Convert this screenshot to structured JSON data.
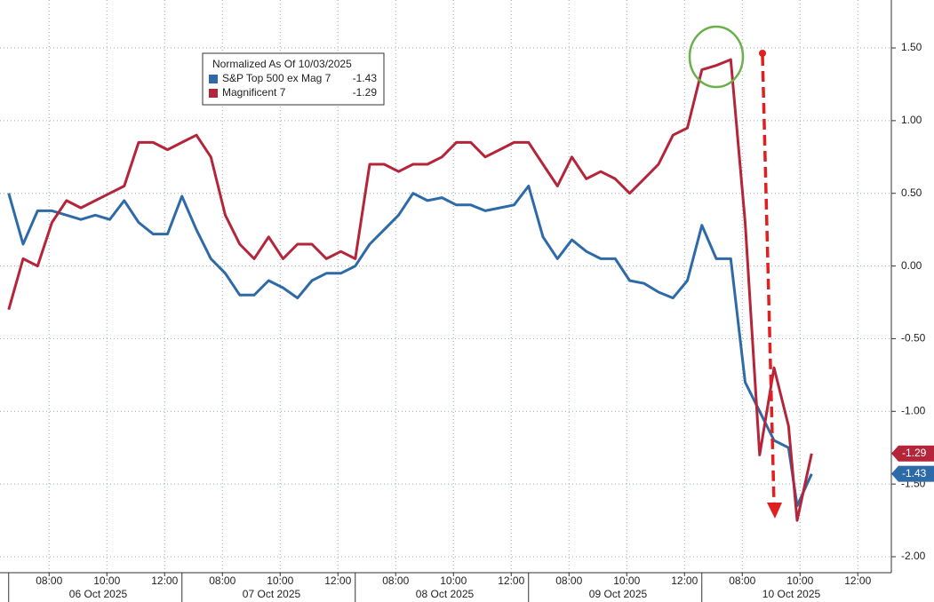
{
  "chart_data": {
    "type": "line",
    "legend_title": "Normalized As Of 10/03/2025",
    "x": [
      0,
      0.5,
      1,
      1.5,
      2,
      2.5,
      3,
      3.5,
      4,
      4.5,
      5,
      5.5,
      6,
      6.5,
      7,
      7.5,
      8,
      8.5,
      9,
      9.5,
      10,
      10.5,
      11,
      11.5,
      12,
      12.5,
      13,
      13.5,
      14,
      14.5,
      15,
      15.5,
      16,
      16.5,
      17,
      17.5,
      18,
      18.5,
      19,
      19.5,
      20,
      20.5,
      21,
      21.5,
      22,
      22.5,
      23,
      23.5,
      24,
      24.5,
      25,
      25.5,
      26,
      26.5,
      27,
      27.3,
      27.8
    ],
    "series": [
      {
        "name": "S&P Top 500 ex Mag 7",
        "last_label": "-1.43",
        "color": "#2f6aa8",
        "values": [
          0.5,
          0.15,
          0.38,
          0.38,
          0.35,
          0.32,
          0.35,
          0.32,
          0.45,
          0.3,
          0.22,
          0.22,
          0.48,
          0.25,
          0.05,
          -0.05,
          -0.2,
          -0.2,
          -0.1,
          -0.15,
          -0.22,
          -0.1,
          -0.05,
          -0.05,
          0.0,
          0.15,
          0.25,
          0.35,
          0.5,
          0.45,
          0.47,
          0.42,
          0.42,
          0.38,
          0.4,
          0.42,
          0.55,
          0.2,
          0.05,
          0.18,
          0.1,
          0.05,
          0.05,
          -0.1,
          -0.12,
          -0.18,
          -0.22,
          -0.1,
          0.28,
          0.05,
          0.05,
          -0.8,
          -1.0,
          -1.2,
          -1.25,
          -1.65,
          -1.43
        ]
      },
      {
        "name": "Magnificent 7",
        "last_label": "-1.29",
        "color": "#b5253a",
        "values": [
          -0.3,
          0.05,
          0.0,
          0.3,
          0.45,
          0.4,
          0.45,
          0.5,
          0.55,
          0.85,
          0.85,
          0.8,
          0.85,
          0.9,
          0.75,
          0.35,
          0.15,
          0.05,
          0.2,
          0.05,
          0.15,
          0.15,
          0.05,
          0.1,
          0.05,
          0.7,
          0.7,
          0.65,
          0.7,
          0.7,
          0.75,
          0.85,
          0.85,
          0.75,
          0.8,
          0.85,
          0.85,
          0.7,
          0.55,
          0.75,
          0.6,
          0.65,
          0.6,
          0.5,
          0.6,
          0.7,
          0.9,
          0.95,
          1.35,
          1.38,
          1.42,
          0.3,
          -1.3,
          -0.7,
          -1.1,
          -1.75,
          -1.29
        ]
      }
    ],
    "xlim": [
      -0.3,
      30.5
    ],
    "xticks": [
      {
        "value": 1.4,
        "label": "08:00"
      },
      {
        "value": 3.4,
        "label": "10:00"
      },
      {
        "value": 5.4,
        "label": "12:00"
      },
      {
        "value": 7.4,
        "label": "08:00"
      },
      {
        "value": 9.4,
        "label": "10:00"
      },
      {
        "value": 11.4,
        "label": "12:00"
      },
      {
        "value": 13.4,
        "label": "08:00"
      },
      {
        "value": 15.4,
        "label": "10:00"
      },
      {
        "value": 17.4,
        "label": "12:00"
      },
      {
        "value": 19.4,
        "label": "08:00"
      },
      {
        "value": 21.4,
        "label": "10:00"
      },
      {
        "value": 23.4,
        "label": "12:00"
      },
      {
        "value": 25.4,
        "label": "08:00"
      },
      {
        "value": 27.4,
        "label": "10:00"
      },
      {
        "value": 29.4,
        "label": "12:00"
      }
    ],
    "day_breaks": [
      0,
      6,
      12,
      18,
      24
    ],
    "day_labels": [
      {
        "value": 3.1,
        "label": "06 Oct 2025"
      },
      {
        "value": 9.1,
        "label": "07 Oct 2025"
      },
      {
        "value": 15.1,
        "label": "08 Oct 2025"
      },
      {
        "value": 21.1,
        "label": "09 Oct 2025"
      },
      {
        "value": 27.1,
        "label": "10 Oct 2025"
      }
    ],
    "ylim": [
      -2.11,
      1.83
    ],
    "yticks": [
      {
        "value": 1.5,
        "label": "1.50"
      },
      {
        "value": 1,
        "label": "1.00"
      },
      {
        "value": 0.5,
        "label": "0.50"
      },
      {
        "value": 0,
        "label": "0.00"
      },
      {
        "value": -0.5,
        "label": "-0.50"
      },
      {
        "value": -1,
        "label": "-1.00"
      },
      {
        "value": -1.5,
        "label": "-1.50"
      },
      {
        "value": -2,
        "label": "-2.00"
      }
    ],
    "grid": true
  }
}
